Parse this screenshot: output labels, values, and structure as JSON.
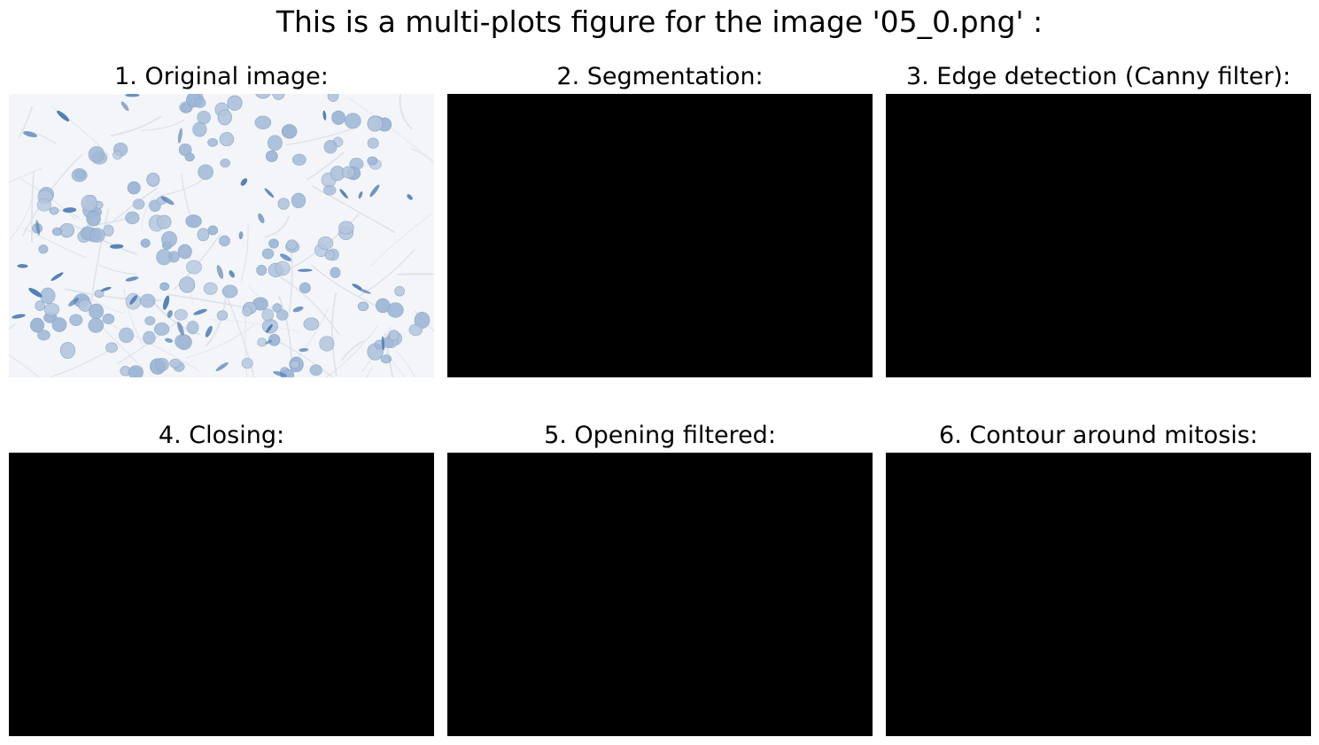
{
  "figure": {
    "title": "This is a multi-plots figure for the image '05_0.png' :"
  },
  "panels": [
    {
      "title": "1. Original image:",
      "kind": "histology-tile"
    },
    {
      "title": "2. Segmentation:",
      "kind": "black"
    },
    {
      "title": "3. Edge detection (Canny filter):",
      "kind": "black"
    },
    {
      "title": "4. Closing:",
      "kind": "black"
    },
    {
      "title": "5. Opening filtered:",
      "kind": "black"
    },
    {
      "title": "6. Contour around mitosis:",
      "kind": "black"
    }
  ],
  "colors": {
    "background": "#ffffff",
    "tissue": "#f2f4f7",
    "nucleus_light": "#b4c6de",
    "nucleus_mid": "#9fb8d6",
    "nucleus_dark": "#4f7db3",
    "black_panel": "#000000"
  }
}
